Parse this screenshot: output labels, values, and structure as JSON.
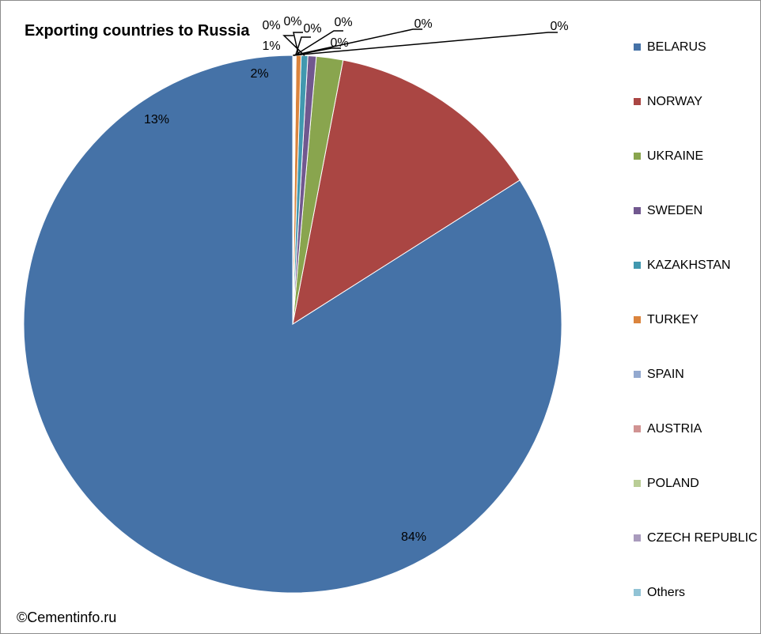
{
  "chart_data": {
    "type": "pie",
    "title": "Exporting countries to Russia",
    "slices": [
      {
        "name": "BELARUS",
        "value": 84,
        "label": "84%",
        "color": "#4572a7"
      },
      {
        "name": "NORWAY",
        "value": 13,
        "label": "13%",
        "color": "#aa4643"
      },
      {
        "name": "UKRAINE",
        "value": 1.6,
        "label": "2%",
        "color": "#89a54e"
      },
      {
        "name": "SWEDEN",
        "value": 0.5,
        "label": "1%",
        "color": "#71588f"
      },
      {
        "name": "KAZAKHSTAN",
        "value": 0.4,
        "label": "0%",
        "color": "#4198af"
      },
      {
        "name": "TURKEY",
        "value": 0.3,
        "label": "0%",
        "color": "#db843d"
      },
      {
        "name": "SPAIN",
        "value": 0.05,
        "label": "0%",
        "color": "#93a9cf"
      },
      {
        "name": "AUSTRIA",
        "value": 0.05,
        "label": "0%",
        "color": "#d19392"
      },
      {
        "name": "POLAND",
        "value": 0.04,
        "label": "0%",
        "color": "#b9cd96"
      },
      {
        "name": "CZECH REPUBLIC",
        "value": 0.03,
        "label": "0%",
        "color": "#a99bbd"
      },
      {
        "name": "Others",
        "value": 0.03,
        "label": "0%",
        "color": "#91c3d5"
      }
    ],
    "legend_position": "right"
  },
  "footer": {
    "copyright": "©Cementinfo.ru"
  }
}
